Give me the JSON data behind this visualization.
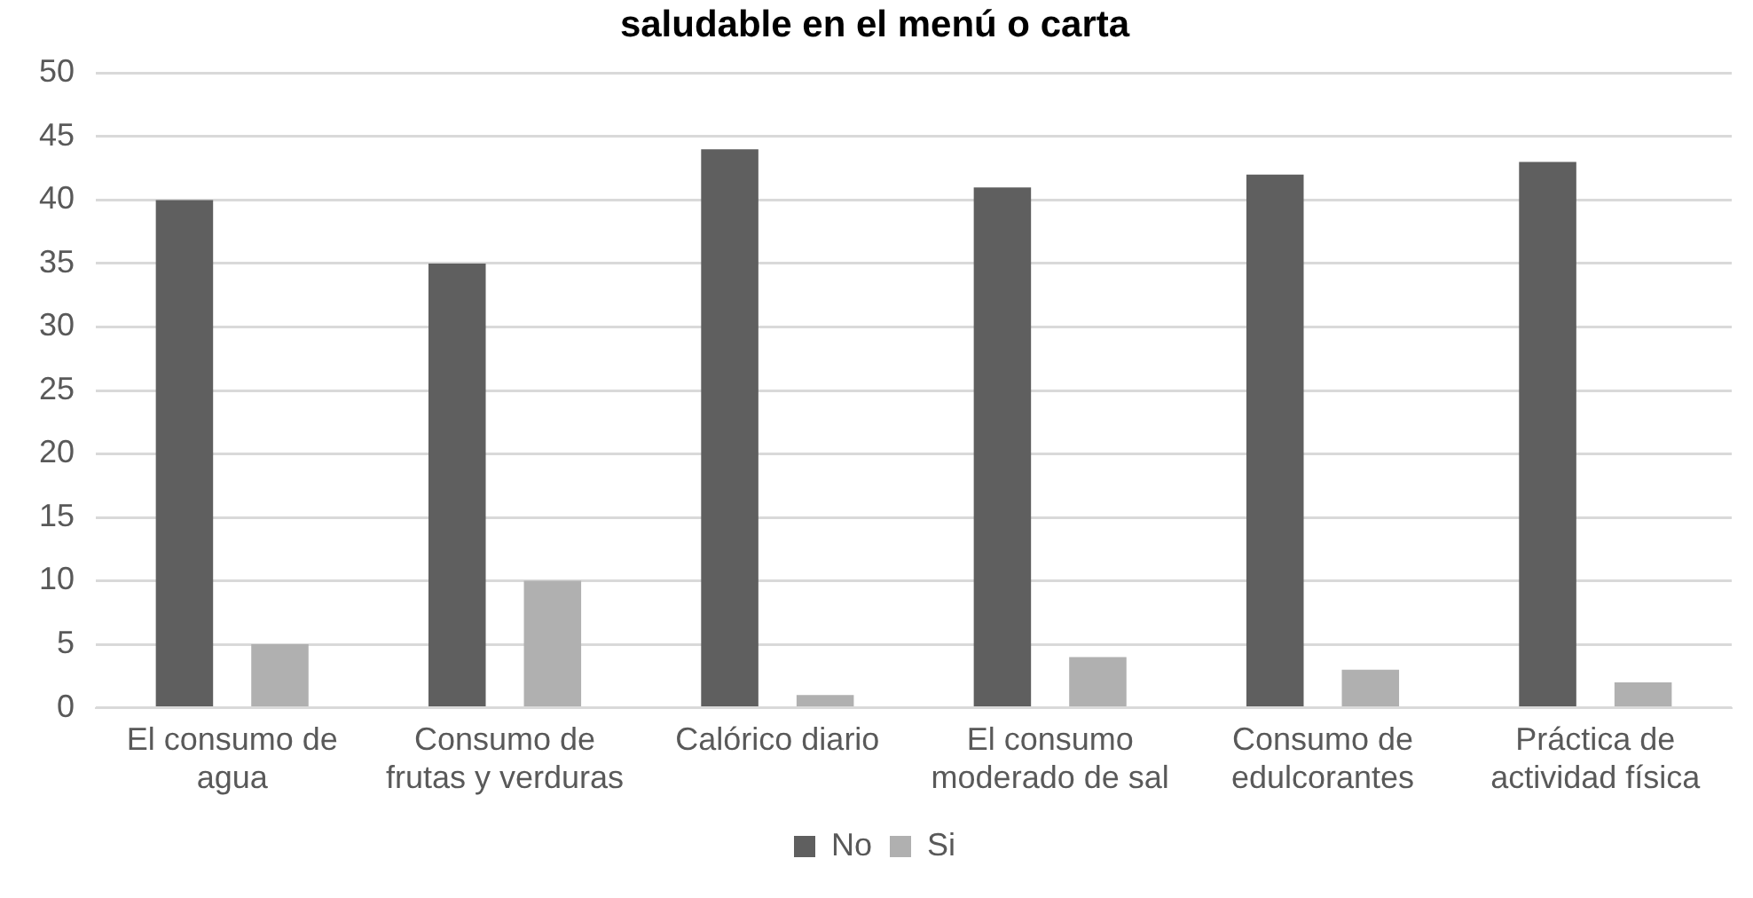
{
  "chart_data": {
    "type": "bar",
    "title": "saludable en el menú o carta",
    "categories": [
      "El consumo de agua",
      "Consumo de frutas y verduras",
      "Calórico diario",
      "El consumo moderado de sal",
      "Consumo de edulcorantes",
      "Práctica de actividad física"
    ],
    "series": [
      {
        "name": "No",
        "color": "#5f5f5f",
        "values": [
          40,
          35,
          44,
          41,
          42,
          43
        ]
      },
      {
        "name": "Si",
        "color": "#b0b0b0",
        "values": [
          5,
          10,
          1,
          4,
          3,
          2
        ]
      }
    ],
    "ylim": [
      0,
      50
    ],
    "yticks": [
      0,
      5,
      10,
      15,
      20,
      25,
      30,
      35,
      40,
      45,
      50
    ],
    "grid": "y",
    "legend": "bottom"
  }
}
